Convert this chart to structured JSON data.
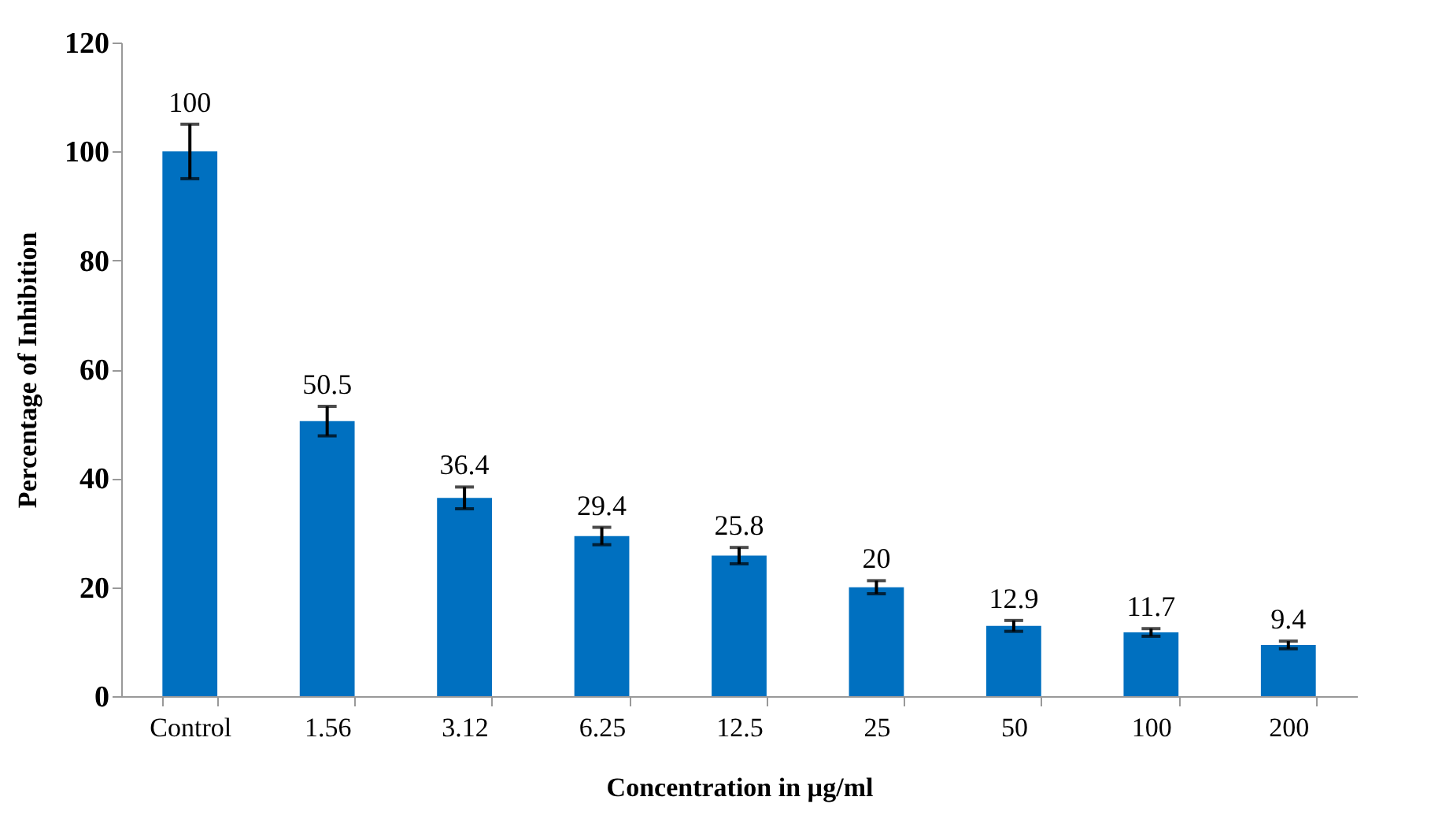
{
  "chart_data": {
    "type": "bar",
    "xlabel": "Concentration in µg/ml",
    "ylabel": "Percentage of Inhibition",
    "categories": [
      "Control",
      "1.56",
      "3.12",
      "6.25",
      "12.5",
      "25",
      "50",
      "100",
      "200"
    ],
    "values": [
      100,
      50.5,
      36.4,
      29.4,
      25.8,
      20,
      12.9,
      11.7,
      9.4
    ],
    "errors": [
      5,
      2.7,
      2,
      1.6,
      1.5,
      1.2,
      1,
      0.7,
      0.7
    ],
    "color": "#0070c0",
    "ylim": [
      0,
      120
    ],
    "yticks": [
      0,
      20,
      40,
      60,
      80,
      100,
      120
    ],
    "data_labels": true,
    "grid": false
  }
}
